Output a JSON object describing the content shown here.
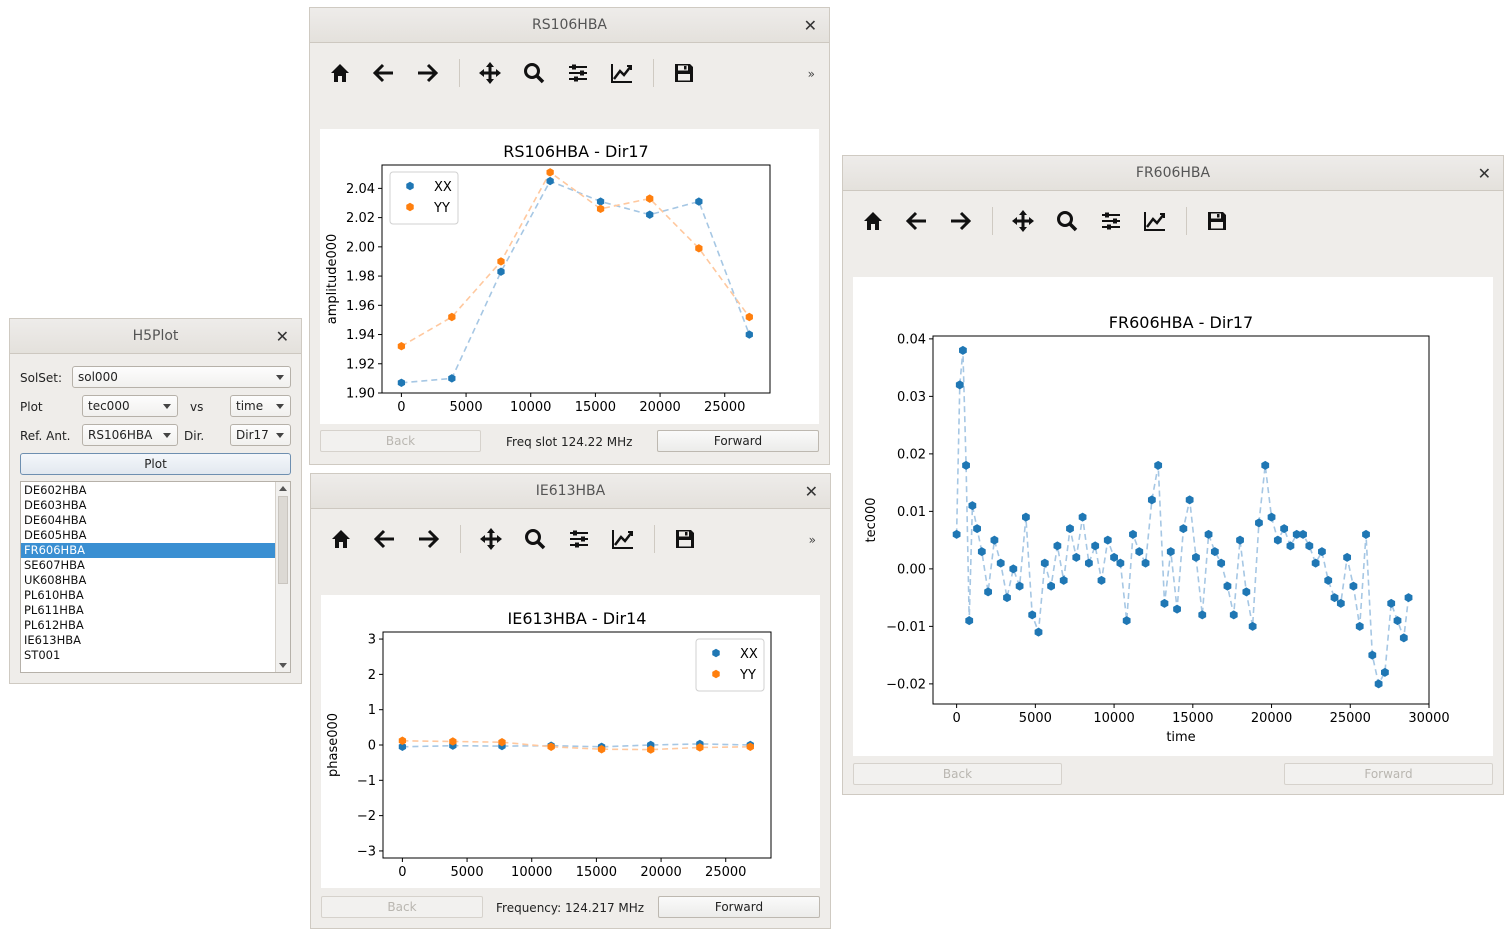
{
  "h5plot": {
    "title": "H5Plot",
    "solset_label": "SolSet:",
    "solset_value": "sol000",
    "plot_label": "Plot",
    "plot_value": "tec000",
    "vs_label": "vs",
    "axis_value": "time",
    "refant_label": "Ref. Ant.",
    "refant_value": "RS106HBA",
    "dir_label": "Dir.",
    "dir_value": "Dir17",
    "plot_button": "Plot",
    "stations": [
      "DE602HBA",
      "DE603HBA",
      "DE604HBA",
      "DE605HBA",
      "FR606HBA",
      "SE607HBA",
      "UK608HBA",
      "PL610HBA",
      "PL611HBA",
      "PL612HBA",
      "IE613HBA",
      "ST001"
    ],
    "selected_station": "FR606HBA"
  },
  "rs106": {
    "window_title": "RS106HBA",
    "back": "Back",
    "forward": "Forward",
    "status": "Freq slot 124.22 MHz"
  },
  "ie613": {
    "window_title": "IE613HBA",
    "back": "Back",
    "forward": "Forward",
    "status": "Frequency: 124.217 MHz"
  },
  "fr606": {
    "window_title": "FR606HBA",
    "back": "Back",
    "forward": "Forward"
  },
  "icons": [
    "home-icon",
    "back-arrow-icon",
    "forward-arrow-icon",
    "pan-icon",
    "zoom-icon",
    "subplots-icon",
    "edit-axis-icon",
    "save-icon",
    "more-icon",
    "close-icon"
  ],
  "colors": {
    "series_xx": "#1f77b4",
    "series_yy": "#ff7f0e",
    "selection": "#3a8fd2"
  },
  "chart_data": [
    {
      "id": "rs106",
      "type": "scatter",
      "title": "RS106HBA - Dir17",
      "xlabel": "",
      "ylabel": "amplitude000",
      "xlim": [
        -1500,
        28500
      ],
      "ylim": [
        1.9,
        2.056
      ],
      "xticks": [
        0,
        5000,
        10000,
        15000,
        20000,
        25000
      ],
      "yticks": [
        1.9,
        1.92,
        1.94,
        1.96,
        1.98,
        2.0,
        2.02,
        2.04
      ],
      "yticklabels": [
        "1.90",
        "1.92",
        "1.94",
        "1.96",
        "1.98",
        "2.00",
        "2.02",
        "2.04"
      ],
      "legend": "top-left",
      "series": [
        {
          "name": "XX",
          "x": [
            0,
            3900,
            7700,
            11500,
            15400,
            19200,
            23000,
            26900
          ],
          "y": [
            1.907,
            1.91,
            1.983,
            2.045,
            2.031,
            2.022,
            2.031,
            1.94
          ]
        },
        {
          "name": "YY",
          "x": [
            0,
            3900,
            7700,
            11500,
            15400,
            19200,
            23000,
            26900
          ],
          "y": [
            1.932,
            1.952,
            1.99,
            2.051,
            2.026,
            2.033,
            1.999,
            1.952
          ]
        }
      ]
    },
    {
      "id": "ie613",
      "type": "scatter",
      "title": "IE613HBA - Dir14",
      "xlabel": "",
      "ylabel": "phase000",
      "xlim": [
        -1500,
        28500
      ],
      "ylim": [
        -3.2,
        3.2
      ],
      "xticks": [
        0,
        5000,
        10000,
        15000,
        20000,
        25000
      ],
      "yticks": [
        -3,
        -2,
        -1,
        0,
        1,
        2,
        3
      ],
      "yticklabels": [
        "−3",
        "−2",
        "−1",
        "0",
        "1",
        "2",
        "3"
      ],
      "legend": "top-right",
      "series": [
        {
          "name": "XX",
          "x": [
            0,
            3900,
            7700,
            11500,
            15400,
            19200,
            23000,
            26900
          ],
          "y": [
            -0.05,
            -0.02,
            -0.03,
            -0.02,
            -0.05,
            0.0,
            0.03,
            0.0
          ]
        },
        {
          "name": "YY",
          "x": [
            0,
            3900,
            7700,
            11500,
            15400,
            19200,
            23000,
            26900
          ],
          "y": [
            0.12,
            0.1,
            0.08,
            -0.05,
            -0.12,
            -0.13,
            -0.07,
            -0.05
          ]
        }
      ]
    },
    {
      "id": "fr606",
      "type": "scatter",
      "title": "FR606HBA - Dir17",
      "xlabel": "time",
      "ylabel": "tec000",
      "xlim": [
        -1500,
        30000
      ],
      "ylim": [
        -0.0235,
        0.0405
      ],
      "xticks": [
        0,
        5000,
        10000,
        15000,
        20000,
        25000,
        30000
      ],
      "yticks": [
        -0.02,
        -0.01,
        0.0,
        0.01,
        0.02,
        0.03,
        0.04
      ],
      "yticklabels": [
        "−0.02",
        "−0.01",
        "0.00",
        "0.01",
        "0.02",
        "0.03",
        "0.04"
      ],
      "legend": "none",
      "series": [
        {
          "name": "",
          "x": [
            0,
            200,
            400,
            600,
            800,
            1000,
            1300,
            1600,
            2000,
            2400,
            2800,
            3200,
            3600,
            4000,
            4400,
            4800,
            5200,
            5600,
            6000,
            6400,
            6800,
            7200,
            7600,
            8000,
            8400,
            8800,
            9200,
            9600,
            10000,
            10400,
            10800,
            11200,
            11600,
            12000,
            12400,
            12800,
            13200,
            13600,
            14000,
            14400,
            14800,
            15200,
            15600,
            16000,
            16400,
            16800,
            17200,
            17600,
            18000,
            18400,
            18800,
            19200,
            19600,
            20000,
            20400,
            20800,
            21200,
            21600,
            22000,
            22400,
            22800,
            23200,
            23600,
            24000,
            24400,
            24800,
            25200,
            25600,
            26000,
            26400,
            26800,
            27200,
            27600,
            28000,
            28400,
            28700
          ],
          "y": [
            0.006,
            0.032,
            0.038,
            0.018,
            -0.009,
            0.011,
            0.007,
            0.003,
            -0.004,
            0.005,
            0.001,
            -0.005,
            0.0,
            -0.003,
            0.009,
            -0.008,
            -0.011,
            0.001,
            -0.003,
            0.004,
            -0.002,
            0.007,
            0.002,
            0.009,
            0.001,
            0.004,
            -0.002,
            0.005,
            0.002,
            0.001,
            -0.009,
            0.006,
            0.003,
            0.001,
            0.012,
            0.018,
            -0.006,
            0.003,
            -0.007,
            0.007,
            0.012,
            0.002,
            -0.008,
            0.006,
            0.003,
            0.001,
            -0.003,
            -0.008,
            0.005,
            -0.004,
            -0.01,
            0.008,
            0.018,
            0.009,
            0.005,
            0.007,
            0.004,
            0.006,
            0.006,
            0.004,
            0.001,
            0.003,
            -0.002,
            -0.005,
            -0.006,
            0.002,
            -0.003,
            -0.01,
            0.006,
            -0.015,
            -0.02,
            -0.018,
            -0.006,
            -0.009,
            -0.012,
            -0.005
          ]
        }
      ]
    }
  ]
}
